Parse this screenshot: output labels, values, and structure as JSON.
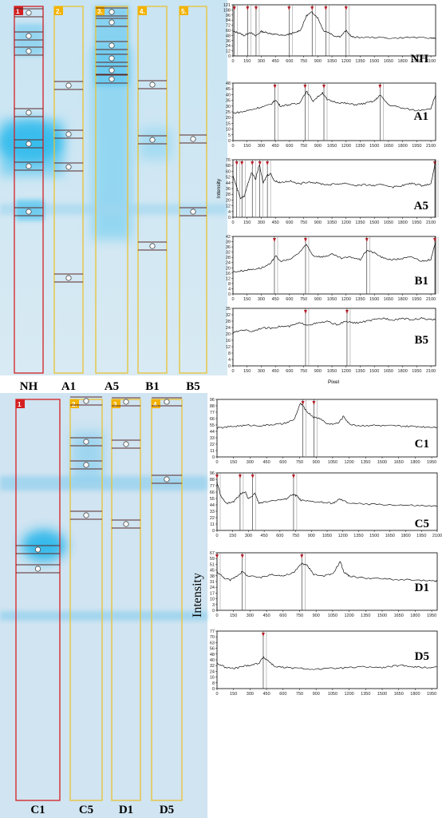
{
  "colors": {
    "gel_bg": "#d3e7f3",
    "band": "#29b6e6",
    "lane_first": "#d42020",
    "lane_other": "#e8c234",
    "badge_first": "#d42020",
    "badge_other": "#f2b200",
    "trace": "#111111",
    "marker": "#b3202a"
  },
  "top_panel": {
    "gel": {
      "lanes": [
        {
          "badge": "1",
          "label": "NH",
          "first": true
        },
        {
          "badge": "2.",
          "label": "A1",
          "first": false
        },
        {
          "badge": "3.",
          "label": "A5",
          "first": false
        },
        {
          "badge": "4.",
          "label": "B1",
          "first": false
        },
        {
          "badge": "5.",
          "label": "B5",
          "first": false
        }
      ]
    },
    "axis_title_y": "Intensity",
    "axis_title_x": "Pixel"
  },
  "bottom_panel": {
    "gel": {
      "lanes": [
        {
          "badge": "1",
          "label": "C1",
          "first": true
        },
        {
          "badge": "2.",
          "label": "C5",
          "first": false
        },
        {
          "badge": "3",
          "label": "D1",
          "first": false
        },
        {
          "badge": "4.",
          "label": "D5",
          "first": false
        }
      ]
    },
    "axis_title_y": "Intensity"
  },
  "chart_data": [
    {
      "type": "line",
      "label": "NH",
      "xlim": [
        0,
        2150
      ],
      "ylim": [
        0,
        121
      ],
      "xticks": [
        "0",
        "150",
        "300",
        "450",
        "600",
        "750",
        "900",
        "1050",
        "1200",
        "1350",
        "1500",
        "1650",
        "1800",
        "1950",
        "2100"
      ],
      "yticks": [
        "121",
        "108",
        "96",
        "84",
        "72",
        "60",
        "48",
        "36",
        "24",
        "12",
        "0"
      ],
      "x": [
        0,
        60,
        120,
        180,
        240,
        300,
        360,
        420,
        480,
        540,
        600,
        660,
        720,
        780,
        840,
        900,
        960,
        1020,
        1080,
        1140,
        1200,
        1260,
        1320,
        1500,
        1700,
        1900,
        2100,
        2150
      ],
      "y": [
        58,
        55,
        48,
        56,
        47,
        58,
        55,
        52,
        50,
        48,
        52,
        55,
        62,
        95,
        104,
        90,
        60,
        55,
        47,
        46,
        60,
        45,
        44,
        44,
        42,
        44,
        42,
        43
      ],
      "markers": [
        15,
        155,
        245,
        595,
        840,
        985,
        1200
      ]
    },
    {
      "type": "line",
      "label": "A1",
      "xlim": [
        0,
        2150
      ],
      "ylim": [
        0,
        48
      ],
      "xticks": [
        "0",
        "150",
        "300",
        "450",
        "600",
        "750",
        "900",
        "1050",
        "1200",
        "1350",
        "1500",
        "1650",
        "1800",
        "1950",
        "2100"
      ],
      "yticks": [
        "48",
        "45",
        "40",
        "35",
        "30",
        "25",
        "20",
        "15",
        "10",
        "5",
        "0"
      ],
      "x": [
        0,
        100,
        200,
        300,
        400,
        450,
        500,
        600,
        700,
        780,
        850,
        950,
        1000,
        1100,
        1200,
        1300,
        1400,
        1500,
        1560,
        1650,
        1800,
        1950,
        2100,
        2150
      ],
      "y": [
        23,
        24,
        26,
        28,
        30,
        34,
        29,
        30,
        31,
        41,
        33,
        40,
        34,
        32,
        31,
        30,
        31,
        33,
        38,
        30,
        27,
        25,
        27,
        38
      ],
      "markers": [
        445,
        765,
        965,
        1560
      ]
    },
    {
      "type": "line",
      "label": "A5",
      "xlim": [
        0,
        2150
      ],
      "ylim": [
        0,
        76
      ],
      "xticks": [
        "0",
        "150",
        "300",
        "450",
        "600",
        "750",
        "900",
        "1050",
        "1200",
        "1350",
        "1500",
        "1650",
        "1800",
        "1950",
        "2100"
      ],
      "yticks": [
        "76",
        "68",
        "60",
        "52",
        "44",
        "36",
        "28",
        "20",
        "12",
        "4",
        "0"
      ],
      "x": [
        0,
        40,
        80,
        120,
        160,
        200,
        240,
        280,
        320,
        360,
        400,
        440,
        500,
        600,
        700,
        800,
        900,
        1000,
        1100,
        1200,
        1300,
        1400,
        1500,
        1600,
        1700,
        1800,
        1900,
        2000,
        2100,
        2150
      ],
      "y": [
        55,
        40,
        25,
        28,
        45,
        60,
        50,
        70,
        45,
        55,
        58,
        48,
        46,
        48,
        44,
        47,
        45,
        43,
        44,
        45,
        42,
        43,
        42,
        43,
        40,
        42,
        45,
        42,
        44,
        75
      ],
      "markers": [
        40,
        95,
        205,
        285,
        365,
        2150
      ]
    },
    {
      "type": "line",
      "label": "B1",
      "xlim": [
        0,
        2150
      ],
      "ylim": [
        0,
        42
      ],
      "xticks": [
        "0",
        "150",
        "300",
        "450",
        "600",
        "750",
        "900",
        "1050",
        "1200",
        "1350",
        "1500",
        "1650",
        "1800",
        "1950",
        "2100"
      ],
      "yticks": [
        "42",
        "39",
        "36",
        "32",
        "28",
        "24",
        "20",
        "16",
        "12",
        "8",
        "4",
        "0"
      ],
      "x": [
        0,
        100,
        200,
        300,
        400,
        450,
        500,
        600,
        700,
        780,
        850,
        950,
        1050,
        1150,
        1250,
        1350,
        1420,
        1500,
        1600,
        1700,
        1800,
        1900,
        2000,
        2100,
        2150
      ],
      "y": [
        16,
        17,
        18,
        19,
        22,
        28,
        24,
        25,
        30,
        36,
        28,
        27,
        29,
        26,
        27,
        25,
        32,
        30,
        26,
        25,
        26,
        27,
        24,
        25,
        38
      ],
      "markers": [
        440,
        770,
        1420,
        2150
      ]
    },
    {
      "type": "line",
      "label": "B5",
      "xlim": [
        0,
        2150
      ],
      "ylim": [
        0,
        35
      ],
      "xticks": [
        "0",
        "150",
        "300",
        "450",
        "600",
        "750",
        "900",
        "1050",
        "1200",
        "1350",
        "1500",
        "1650",
        "1800",
        "1950",
        "2100"
      ],
      "yticks": [
        "35",
        "32",
        "28",
        "24",
        "20",
        "16",
        "12",
        "8",
        "4",
        "0"
      ],
      "x": [
        0,
        100,
        200,
        300,
        400,
        500,
        600,
        700,
        800,
        900,
        1000,
        1100,
        1200,
        1300,
        1400,
        1500,
        1600,
        1700,
        1800,
        1900,
        2000,
        2100,
        2150
      ],
      "y": [
        20,
        22,
        21,
        23,
        23,
        24,
        24,
        26,
        25,
        26,
        27,
        25,
        27,
        26,
        27,
        28,
        29,
        28,
        29,
        28,
        29,
        28,
        28
      ],
      "markers": [
        770,
        1210
      ]
    },
    {
      "type": "line",
      "label": "C1",
      "xlim": [
        0,
        2000
      ],
      "ylim": [
        0,
        96
      ],
      "xticks": [
        "0",
        "150",
        "300",
        "450",
        "600",
        "750",
        "900",
        "1050",
        "1200",
        "1350",
        "1500",
        "1650",
        "1800",
        "1950"
      ],
      "yticks": [
        "96",
        "88",
        "77",
        "66",
        "55",
        "44",
        "33",
        "22",
        "11",
        "0"
      ],
      "x": [
        0,
        100,
        200,
        300,
        400,
        500,
        600,
        700,
        760,
        820,
        880,
        940,
        1000,
        1100,
        1150,
        1200,
        1300,
        1400,
        1500,
        1600,
        1700,
        1800,
        1900,
        2000
      ],
      "y": [
        48,
        50,
        52,
        53,
        52,
        54,
        55,
        62,
        90,
        75,
        66,
        64,
        55,
        56,
        68,
        55,
        52,
        53,
        52,
        52,
        51,
        51,
        50,
        50
      ],
      "markers": [
        780,
        880
      ]
    },
    {
      "type": "line",
      "label": "C5",
      "xlim": [
        0,
        2100
      ],
      "ylim": [
        0,
        96
      ],
      "xticks": [
        "0",
        "150",
        "300",
        "450",
        "600",
        "750",
        "900",
        "1050",
        "1200",
        "1350",
        "1500",
        "1650",
        "1800",
        "1950",
        "2100"
      ],
      "yticks": [
        "96",
        "88",
        "77",
        "66",
        "55",
        "44",
        "33",
        "22",
        "11",
        "0"
      ],
      "x": [
        0,
        40,
        100,
        160,
        220,
        270,
        300,
        360,
        400,
        450,
        550,
        650,
        720,
        760,
        800,
        900,
        1000,
        1100,
        1170,
        1250,
        1400,
        1600,
        1800,
        1950,
        2100
      ],
      "y": [
        80,
        55,
        45,
        48,
        60,
        65,
        52,
        62,
        45,
        48,
        50,
        52,
        60,
        58,
        50,
        48,
        47,
        45,
        52,
        46,
        44,
        43,
        42,
        41,
        40
      ],
      "markers": [
        0,
        220,
        340,
        730
      ]
    },
    {
      "type": "line",
      "label": "D1",
      "xlim": [
        0,
        2000
      ],
      "ylim": [
        0,
        67
      ],
      "xticks": [
        "0",
        "150",
        "300",
        "450",
        "600",
        "750",
        "900",
        "1050",
        "1200",
        "1350",
        "1500",
        "1650",
        "1800",
        "1950"
      ],
      "yticks": [
        "67",
        "59",
        "51",
        "45",
        "38",
        "31",
        "24",
        "17",
        "10",
        "3",
        "0"
      ],
      "x": [
        0,
        60,
        120,
        180,
        230,
        280,
        400,
        500,
        600,
        700,
        770,
        820,
        880,
        950,
        1050,
        1120,
        1150,
        1200,
        1300,
        1450,
        1600,
        1800,
        1950,
        2000
      ],
      "y": [
        45,
        38,
        35,
        40,
        45,
        40,
        38,
        42,
        40,
        44,
        55,
        52,
        42,
        40,
        42,
        57,
        45,
        40,
        38,
        37,
        36,
        35,
        34,
        34
      ],
      "markers": [
        0,
        230,
        770
      ]
    },
    {
      "type": "line",
      "label": "D5",
      "xlim": [
        0,
        2000
      ],
      "ylim": [
        0,
        77
      ],
      "xticks": [
        "0",
        "150",
        "300",
        "450",
        "600",
        "750",
        "900",
        "1050",
        "1200",
        "1350",
        "1500",
        "1650",
        "1800",
        "1950"
      ],
      "yticks": [
        "77",
        "70",
        "63",
        "56",
        "48",
        "40",
        "32",
        "24",
        "16",
        "8",
        "0"
      ],
      "x": [
        0,
        80,
        160,
        240,
        320,
        380,
        420,
        460,
        520,
        620,
        750,
        900,
        1050,
        1200,
        1350,
        1500,
        1600,
        1700,
        1800,
        1900,
        2000
      ],
      "y": [
        34,
        28,
        27,
        30,
        32,
        34,
        42,
        38,
        30,
        28,
        27,
        26,
        27,
        28,
        29,
        28,
        30,
        31,
        29,
        28,
        29
      ],
      "markers": [
        420
      ]
    }
  ]
}
